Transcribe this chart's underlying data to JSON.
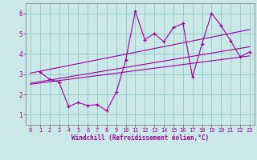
{
  "xlabel": "Windchill (Refroidissement éolien,°C)",
  "background_color": "#cbe8e8",
  "grid_color": "#99cccc",
  "line_color": "#990099",
  "xlim": [
    -0.5,
    23.5
  ],
  "ylim": [
    0.5,
    6.5
  ],
  "xticks": [
    0,
    1,
    2,
    3,
    4,
    5,
    6,
    7,
    8,
    9,
    10,
    11,
    12,
    13,
    14,
    15,
    16,
    17,
    18,
    19,
    20,
    21,
    22,
    23
  ],
  "yticks": [
    1,
    2,
    3,
    4,
    5,
    6
  ],
  "series1_x": [
    1,
    2,
    3,
    4,
    5,
    6,
    7,
    8,
    9,
    10,
    11,
    12,
    13,
    14,
    15,
    16,
    17,
    18,
    19,
    20,
    21,
    22,
    23
  ],
  "series1_y": [
    3.1,
    2.75,
    2.6,
    1.4,
    1.6,
    1.45,
    1.5,
    1.2,
    2.1,
    3.7,
    6.1,
    4.7,
    5.0,
    4.6,
    5.3,
    5.5,
    2.85,
    4.5,
    6.0,
    5.4,
    4.65,
    3.85,
    4.1
  ],
  "trend1_x": [
    0,
    23
  ],
  "trend1_y": [
    2.5,
    3.9
  ],
  "trend2_x": [
    0,
    23
  ],
  "trend2_y": [
    3.05,
    5.2
  ],
  "trend3_x": [
    0,
    23
  ],
  "trend3_y": [
    2.55,
    4.35
  ]
}
